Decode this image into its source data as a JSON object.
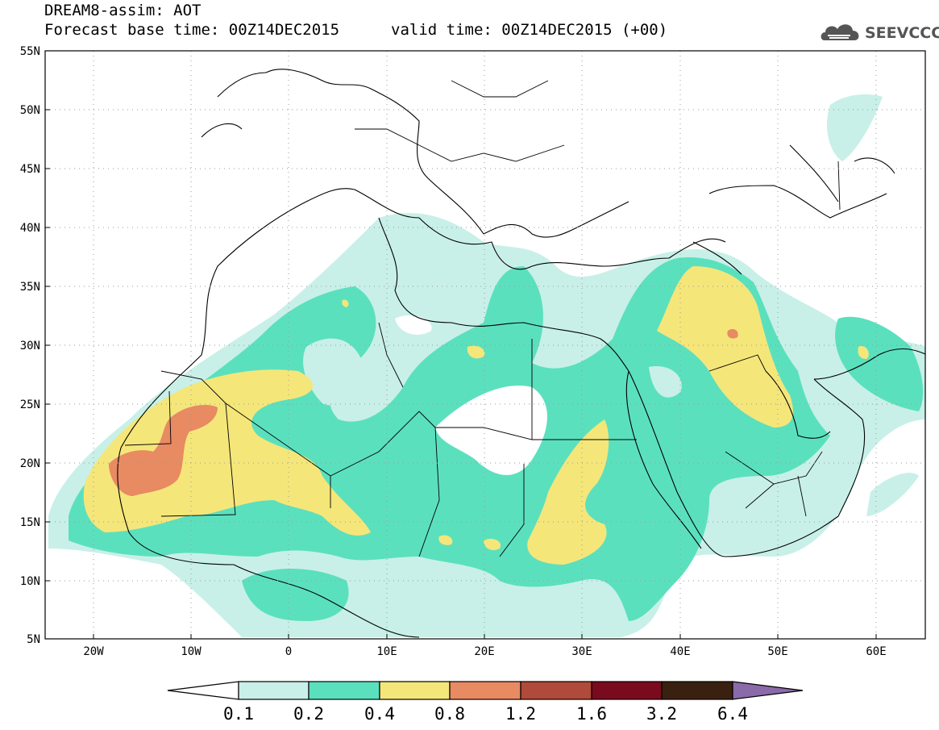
{
  "title": {
    "line1": "DREAM8-assim: AOT",
    "forecast": "Forecast base time: 00Z14DEC2015",
    "valid": "valid time: 00Z14DEC2015 (+00)"
  },
  "logo": {
    "text": "SEEVCCC",
    "icon": "cloud-icon"
  },
  "map": {
    "lat_labels": [
      "55N",
      "50N",
      "45N",
      "40N",
      "35N",
      "30N",
      "25N",
      "20N",
      "15N",
      "10N",
      "5N"
    ],
    "lon_labels": [
      "20W",
      "10W",
      "0",
      "10E",
      "20E",
      "30E",
      "40E",
      "50E",
      "60E"
    ],
    "lon_range": [
      -25,
      65
    ],
    "lat_range": [
      5,
      55
    ]
  },
  "colorbar": {
    "labels": [
      "0.1",
      "0.2",
      "0.4",
      "0.8",
      "1.2",
      "1.6",
      "3.2",
      "6.4"
    ],
    "colors": [
      "#ffffff",
      "#c8f0e8",
      "#5be0be",
      "#f5e67a",
      "#e88a62",
      "#b04a3a",
      "#7a0a1e",
      "#3a2010",
      "#8a6aa8"
    ]
  }
}
